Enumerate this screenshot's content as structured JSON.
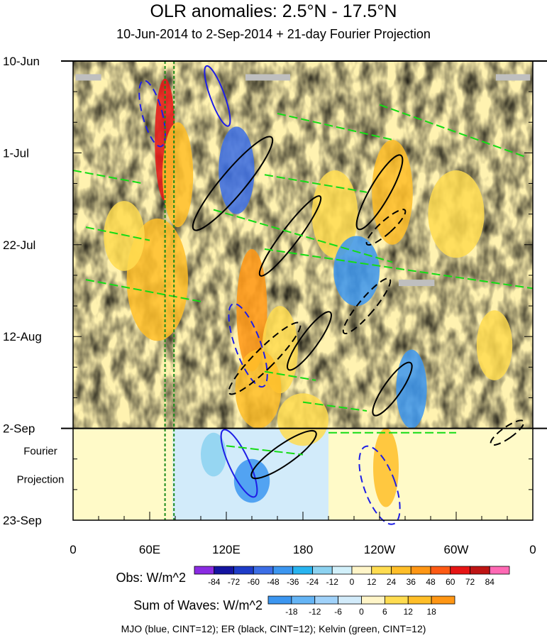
{
  "title": "OLR anomalies: 2.5°N - 17.5°N",
  "subtitle": "10-Jun-2014 to 2-Sep-2014 + 21-day Fourier Projection",
  "footer": "MJO (blue, CINT=12); ER (black, CINT=12); Kelvin (green, CINT=12)",
  "chart_data": {
    "type": "heatmap",
    "title": "OLR anomalies: 2.5°N - 17.5°N",
    "subtitle": "10-Jun-2014 to 2-Sep-2014 + 21-day Fourier Projection",
    "x_ticks": [
      "0",
      "60E",
      "120E",
      "180",
      "120W",
      "60W",
      "0"
    ],
    "x_tick_values": [
      0,
      60,
      120,
      180,
      240,
      300,
      360
    ],
    "xlim": [
      0,
      360
    ],
    "y_ticks": [
      "10-Jun",
      "1-Jul",
      "22-Jul",
      "12-Aug",
      "2-Sep",
      "23-Sep"
    ],
    "y_tick_days": [
      0,
      21,
      42,
      63,
      84,
      105
    ],
    "ylim_days": [
      0,
      105
    ],
    "y_direction": "time increases downward",
    "observation_end": "2-Sep",
    "projection_label": [
      "Fourier",
      "Projection"
    ],
    "reference_lines": [
      {
        "style": "dashed",
        "color": "#1a8a1a",
        "x": 72
      },
      {
        "style": "dashed",
        "color": "#1a8a1a",
        "x": 79
      }
    ],
    "colorbar_obs": {
      "title": "Obs: W/m^2",
      "levels": [
        "-84",
        "-72",
        "-60",
        "-48",
        "-36",
        "-24",
        "-12",
        "0",
        "12",
        "24",
        "36",
        "48",
        "60",
        "72",
        "84"
      ],
      "colors": [
        "#8a2be2",
        "#1414a0",
        "#1e3cc8",
        "#3c6ee6",
        "#3c96f0",
        "#28b4f0",
        "#8cd2f0",
        "#d2f0fa",
        "#fff5c8",
        "#ffdc50",
        "#ffbe28",
        "#ff9614",
        "#ff5a14",
        "#e61414",
        "#be1414",
        "#ff69b4"
      ]
    },
    "colorbar_waves": {
      "title": "Sum of Waves: W/m^2",
      "levels": [
        "-18",
        "-12",
        "-6",
        "0",
        "6",
        "12",
        "18"
      ],
      "colors": [
        "#3c96f0",
        "#64b4f5",
        "#a0d2fa",
        "#d2ebfa",
        "#fff5c8",
        "#ffdc50",
        "#ffbe28",
        "#ff9614"
      ]
    },
    "wave_contours": [
      {
        "name": "MJO",
        "color": "#1e1ee6",
        "cint": 12
      },
      {
        "name": "ER",
        "color": "#000000",
        "cint": 12
      },
      {
        "name": "Kelvin",
        "color": "#14dc14",
        "cint": 12
      }
    ]
  }
}
